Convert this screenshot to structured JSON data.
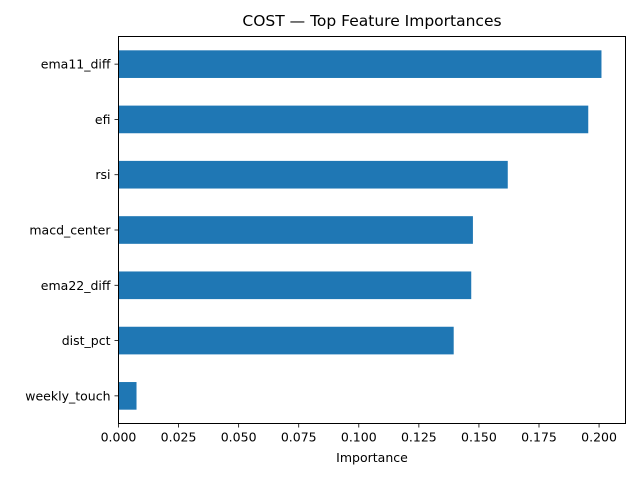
{
  "chart_data": {
    "type": "bar",
    "orientation": "horizontal",
    "title": "COST — Top Feature Importances",
    "xlabel": "Importance",
    "ylabel": "",
    "categories": [
      "ema11_diff",
      "efi",
      "rsi",
      "macd_center",
      "ema22_diff",
      "dist_pct",
      "weekly_touch"
    ],
    "values": [
      0.201,
      0.1955,
      0.162,
      0.1475,
      0.1468,
      0.1395,
      0.0075
    ],
    "xlim": [
      0,
      0.211
    ],
    "xticks": [
      0.0,
      0.025,
      0.05,
      0.075,
      0.1,
      0.125,
      0.15,
      0.175,
      0.2
    ],
    "xtick_labels": [
      "0.000",
      "0.025",
      "0.050",
      "0.075",
      "0.100",
      "0.125",
      "0.150",
      "0.175",
      "0.200"
    ],
    "grid": false,
    "legend": "none",
    "bar_color": "#1f77b4"
  }
}
